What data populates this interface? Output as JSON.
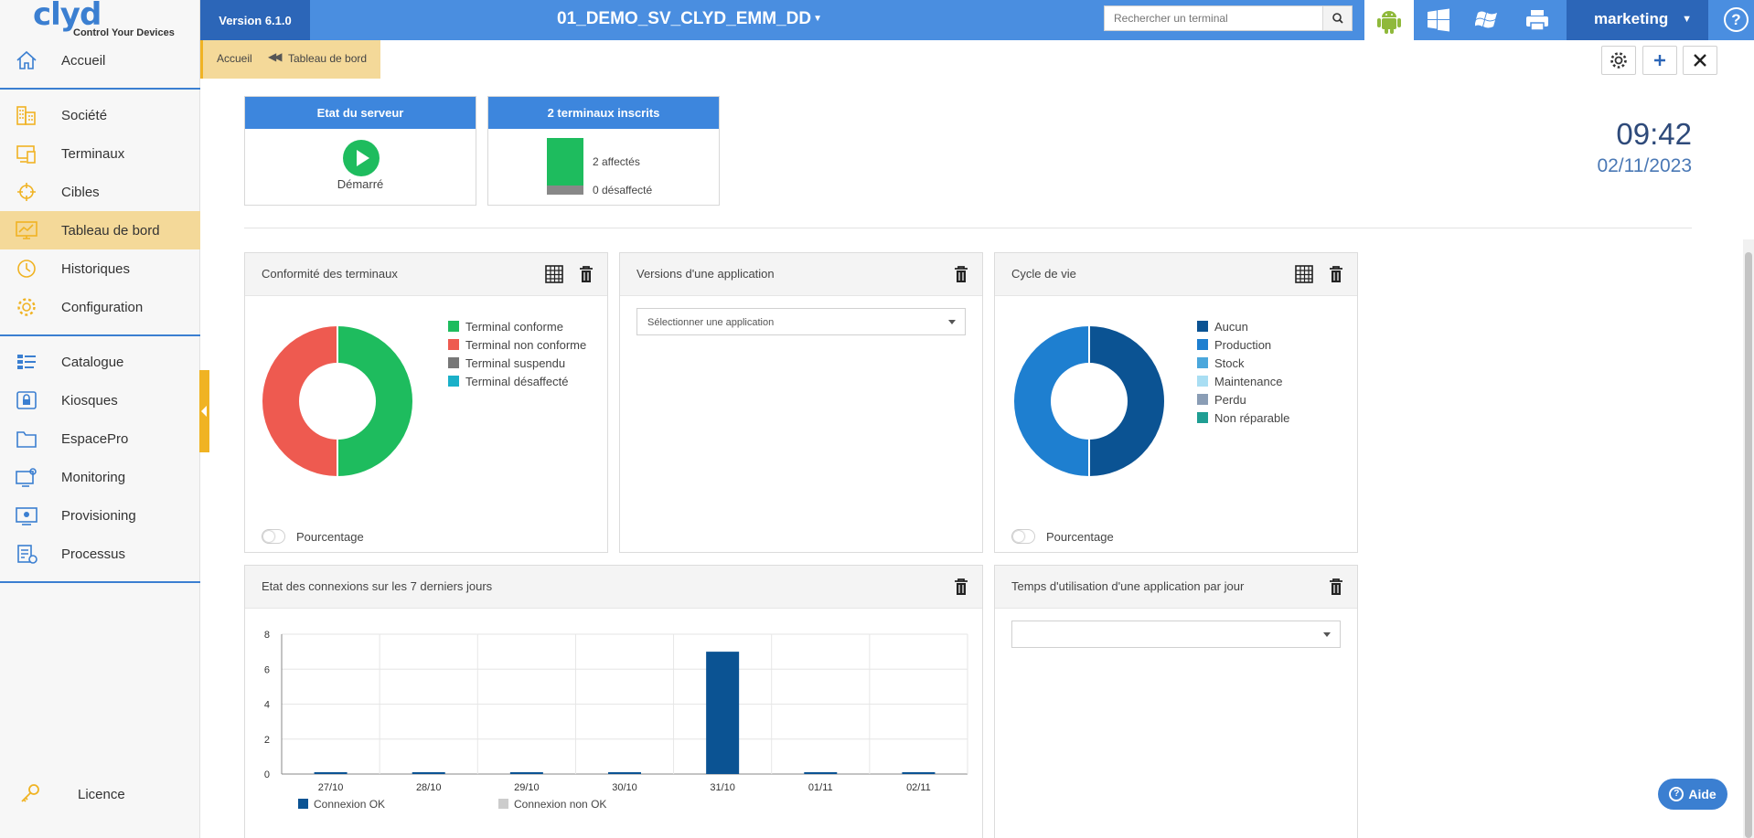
{
  "sidebar": {
    "logo_text": "clyd",
    "logo_tagline": "Control Your Devices",
    "items": [
      {
        "label": "Accueil"
      },
      {
        "label": "Société"
      },
      {
        "label": "Terminaux"
      },
      {
        "label": "Cibles"
      },
      {
        "label": "Tableau de bord"
      },
      {
        "label": "Historiques"
      },
      {
        "label": "Configuration"
      },
      {
        "label": "Catalogue"
      },
      {
        "label": "Kiosques"
      },
      {
        "label": "EspacePro"
      },
      {
        "label": "Monitoring"
      },
      {
        "label": "Provisioning"
      },
      {
        "label": "Processus"
      }
    ],
    "licence_label": "Licence",
    "active_item": "Tableau de bord"
  },
  "topbar": {
    "version": "Version 6.1.0",
    "instance": "01_DEMO_SV_CLYD_EMM_DD",
    "search_placeholder": "Rechercher un terminal",
    "user": "marketing",
    "help": "?",
    "os_icons": [
      "android-icon",
      "windows-icon",
      "windows-legacy-icon",
      "printer-icon"
    ],
    "active_os": "android"
  },
  "breadcrumb": {
    "home": "Accueil",
    "current": "Tableau de bord"
  },
  "server_widget": {
    "title": "Etat du serveur",
    "status": "Démarré"
  },
  "terminals_widget": {
    "title": "2 terminaux inscrits",
    "assigned_label": "2 affectés",
    "unassigned_label": "0 désaffecté",
    "assigned": 2,
    "unassigned": 0
  },
  "clock": {
    "time": "09:42",
    "date": "02/11/2023"
  },
  "conformity_panel": {
    "title": "Conformité des terminaux",
    "legend": [
      {
        "label": "Terminal conforme",
        "color": "#1ebc5e"
      },
      {
        "label": "Terminal non conforme",
        "color": "#ee5a50"
      },
      {
        "label": "Terminal suspendu",
        "color": "#777777"
      },
      {
        "label": "Terminal désaffecté",
        "color": "#1ab0c8"
      }
    ],
    "values": [
      1,
      1,
      0,
      0
    ],
    "toggle_label": "Pourcentage"
  },
  "versions_panel": {
    "title": "Versions d'une application",
    "select_placeholder": "Sélectionner une application"
  },
  "lifecycle_panel": {
    "title": "Cycle de vie",
    "legend": [
      {
        "label": "Aucun",
        "color": "#0b5393"
      },
      {
        "label": "Production",
        "color": "#1e7fd0"
      },
      {
        "label": "Stock",
        "color": "#4ba7dc"
      },
      {
        "label": "Maintenance",
        "color": "#a9def3"
      },
      {
        "label": "Perdu",
        "color": "#8a9db5"
      },
      {
        "label": "Non réparable",
        "color": "#1f9e93"
      }
    ],
    "values": [
      1,
      1,
      0,
      0,
      0,
      0
    ],
    "toggle_label": "Pourcentage"
  },
  "connections_panel": {
    "title": "Etat des connexions sur les 7 derniers jours",
    "chart_data": {
      "type": "bar",
      "categories": [
        "27/10",
        "28/10",
        "29/10",
        "30/10",
        "31/10",
        "01/11",
        "02/11"
      ],
      "series": [
        {
          "name": "Connexion OK",
          "values": [
            0,
            0,
            0,
            0,
            7,
            0,
            0
          ],
          "color": "#0b5393"
        },
        {
          "name": "Connexion non OK",
          "values": [
            0,
            0,
            0,
            0,
            0,
            0,
            0
          ],
          "color": "#cccccc"
        }
      ],
      "yticks": [
        0,
        2,
        4,
        6,
        8
      ],
      "ylim": [
        0,
        8
      ],
      "grid": true,
      "legend_position": "bottom"
    }
  },
  "usage_panel": {
    "title": "Temps d'utilisation d'une application par jour",
    "select_value": ""
  },
  "aide_label": "Aide"
}
